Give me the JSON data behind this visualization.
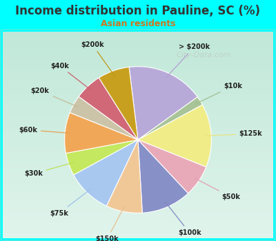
{
  "title": "Income distribution in Pauline, SC (%)",
  "subtitle": "Asian residents",
  "title_color": "#333333",
  "subtitle_color": "#cc7722",
  "bg_outer": "#00ffff",
  "bg_inner_top": "#e8f5f0",
  "bg_inner_bottom": "#c8e8d8",
  "watermark": "City-Data.com",
  "labels": [
    "> $200k",
    "$10k",
    "$125k",
    "$50k",
    "$100k",
    "$150k",
    "$75k",
    "$30k",
    "$60k",
    "$20k",
    "$40k",
    "$200k"
  ],
  "values": [
    17,
    2,
    14,
    7,
    11,
    8,
    10,
    5,
    9,
    4,
    6,
    7
  ],
  "colors": [
    "#b8aad8",
    "#a8c498",
    "#f0ec88",
    "#e8aab8",
    "#8890c8",
    "#f0c898",
    "#a8c8f0",
    "#c4e860",
    "#f0a858",
    "#ccc4a8",
    "#d06878",
    "#c8a020"
  ],
  "line_colors": [
    "#b0a0d0",
    "#a0c090",
    "#e8e480",
    "#e0a0b0",
    "#8088c0",
    "#e8c090",
    "#a0c0e8",
    "#bce058",
    "#e8a050",
    "#c4bc98",
    "#c86070",
    "#c09818"
  ],
  "startangle": 97,
  "counterclock": false
}
